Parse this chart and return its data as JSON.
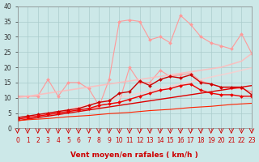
{
  "xlabel": "Vent moyen/en rafales ( km/h )",
  "background_color": "#cce8e8",
  "grid_color": "#aacccc",
  "x_values": [
    0,
    1,
    2,
    3,
    4,
    5,
    6,
    7,
    8,
    9,
    10,
    11,
    12,
    13,
    14,
    15,
    16,
    17,
    18,
    19,
    20,
    21,
    22,
    23
  ],
  "ylim": [
    0,
    40
  ],
  "xlim": [
    0,
    23
  ],
  "yticks": [
    0,
    5,
    10,
    15,
    20,
    25,
    30,
    35,
    40
  ],
  "series": [
    {
      "color": "#ff9999",
      "alpha": 1.0,
      "linewidth": 0.8,
      "marker": "D",
      "markersize": 2.0,
      "connect_all": true,
      "data": [
        3.0,
        3.5,
        4.0,
        4.5,
        5.0,
        5.5,
        6.0,
        6.5,
        7.0,
        16.0,
        35.0,
        35.5,
        35.0,
        29.0,
        30.0,
        28.0,
        37.0,
        34.0,
        30.0,
        28.0,
        27.0,
        26.0,
        31.0,
        24.5
      ]
    },
    {
      "color": "#ff9999",
      "alpha": 1.0,
      "linewidth": 0.8,
      "marker": "D",
      "markersize": 2.0,
      "connect_all": true,
      "data": [
        10.5,
        10.5,
        10.5,
        16.0,
        10.5,
        15.0,
        15.0,
        13.0,
        7.5,
        8.0,
        8.5,
        20.0,
        15.0,
        15.0,
        19.0,
        17.0,
        17.5,
        18.0,
        15.5,
        14.5,
        13.5,
        13.0,
        13.0,
        12.0
      ]
    },
    {
      "color": "#ffbbbb",
      "alpha": 0.85,
      "linewidth": 1.2,
      "marker": null,
      "markersize": 0,
      "connect_all": true,
      "data": [
        10.0,
        10.5,
        11.0,
        11.5,
        12.0,
        12.5,
        13.0,
        13.5,
        14.0,
        14.5,
        15.0,
        15.5,
        16.0,
        16.5,
        17.0,
        17.5,
        18.0,
        18.5,
        19.0,
        19.5,
        20.0,
        21.0,
        22.0,
        24.5
      ]
    },
    {
      "color": "#ffcccc",
      "alpha": 0.75,
      "linewidth": 1.2,
      "marker": null,
      "markersize": 0,
      "connect_all": true,
      "data": [
        3.0,
        3.5,
        4.2,
        4.8,
        5.5,
        6.2,
        7.0,
        7.8,
        8.5,
        9.2,
        10.0,
        10.8,
        11.5,
        12.2,
        13.0,
        13.8,
        14.5,
        15.2,
        16.0,
        16.8,
        17.5,
        18.2,
        19.0,
        19.8
      ]
    },
    {
      "color": "#cc0000",
      "alpha": 1.0,
      "linewidth": 1.0,
      "marker": "D",
      "markersize": 2.0,
      "connect_all": true,
      "data": [
        3.5,
        4.0,
        4.5,
        5.0,
        5.5,
        6.0,
        6.5,
        7.5,
        8.5,
        9.0,
        11.5,
        12.0,
        15.5,
        14.0,
        16.0,
        17.0,
        16.5,
        17.5,
        15.0,
        14.5,
        13.5,
        13.5,
        13.5,
        11.0
      ]
    },
    {
      "color": "#ee0000",
      "alpha": 1.0,
      "linewidth": 1.0,
      "marker": "D",
      "markersize": 2.0,
      "connect_all": true,
      "data": [
        3.0,
        3.5,
        4.0,
        4.5,
        5.0,
        5.5,
        6.0,
        6.5,
        7.5,
        8.0,
        8.5,
        9.5,
        10.5,
        11.5,
        12.5,
        13.0,
        14.0,
        14.5,
        12.5,
        11.5,
        11.0,
        11.0,
        10.5,
        10.5
      ]
    },
    {
      "color": "#dd0000",
      "alpha": 1.0,
      "linewidth": 1.0,
      "marker": null,
      "markersize": 0,
      "connect_all": true,
      "data": [
        2.5,
        3.0,
        3.5,
        4.0,
        4.5,
        5.0,
        5.5,
        6.0,
        6.5,
        7.0,
        7.5,
        8.0,
        8.5,
        9.0,
        9.5,
        10.0,
        10.5,
        11.0,
        11.5,
        12.0,
        12.5,
        13.0,
        13.5,
        14.0
      ]
    },
    {
      "color": "#ff2200",
      "alpha": 1.0,
      "linewidth": 0.8,
      "marker": null,
      "markersize": 0,
      "connect_all": true,
      "data": [
        2.5,
        2.8,
        3.0,
        3.2,
        3.5,
        3.8,
        4.0,
        4.2,
        4.5,
        4.8,
        5.0,
        5.2,
        5.5,
        5.8,
        6.0,
        6.2,
        6.5,
        6.8,
        7.0,
        7.2,
        7.5,
        7.8,
        8.0,
        8.2
      ]
    }
  ],
  "tick_fontsize": 5.5,
  "label_fontsize": 6.5,
  "xlabel_color": "#cc0000",
  "xlabel_bold": true
}
